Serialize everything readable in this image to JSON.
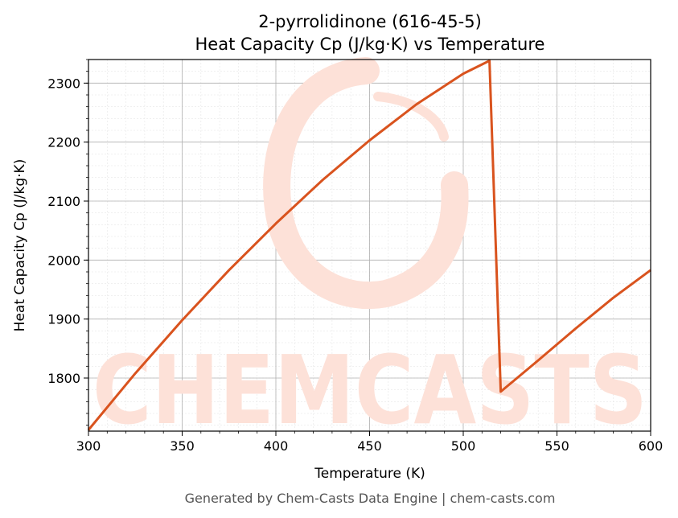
{
  "chart_data": {
    "type": "line",
    "title_line1": "2-pyrrolidinone (616-45-5)",
    "title_line2": "Heat Capacity Cp (J/kg·K) vs Temperature",
    "xlabel": "Temperature (K)",
    "ylabel": "Heat Capacity Cp (J/kg·K)",
    "xlim": [
      300,
      600
    ],
    "ylim": [
      1710,
      2340
    ],
    "x_ticks": [
      300,
      350,
      400,
      450,
      500,
      550,
      600
    ],
    "y_ticks": [
      1800,
      1900,
      2000,
      2100,
      2200,
      2300
    ],
    "grid": true,
    "series": [
      {
        "color": "#d9531e",
        "points": [
          [
            300,
            1712
          ],
          [
            325,
            1808
          ],
          [
            350,
            1898
          ],
          [
            375,
            1983
          ],
          [
            400,
            2062
          ],
          [
            425,
            2136
          ],
          [
            450,
            2203
          ],
          [
            475,
            2264
          ],
          [
            500,
            2316
          ],
          [
            514,
            2338
          ],
          [
            520,
            1777
          ],
          [
            540,
            1830
          ],
          [
            560,
            1884
          ],
          [
            580,
            1936
          ],
          [
            600,
            1983
          ]
        ]
      }
    ],
    "watermark": {
      "text": "CHEMCASTS",
      "color": "#fde1d8"
    }
  },
  "footer": "Generated by Chem-Casts Data Engine | chem-casts.com"
}
